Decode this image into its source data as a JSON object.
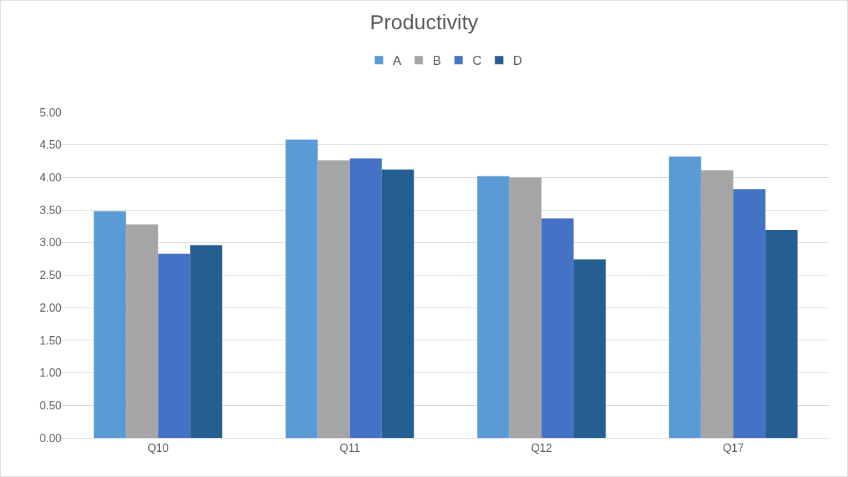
{
  "chart_data": {
    "type": "bar",
    "title": "Productivity",
    "categories": [
      "Q10",
      "Q11",
      "Q12",
      "Q17"
    ],
    "series": [
      {
        "name": "A",
        "color": "#5b9bd5",
        "values": [
          3.48,
          4.58,
          4.02,
          4.32
        ]
      },
      {
        "name": "B",
        "color": "#a5a5a5",
        "values": [
          3.28,
          4.26,
          4.0,
          4.11
        ]
      },
      {
        "name": "C",
        "color": "#4472c4",
        "values": [
          2.83,
          4.29,
          3.37,
          3.82
        ]
      },
      {
        "name": "D",
        "color": "#255e91",
        "values": [
          2.96,
          4.12,
          2.74,
          3.19
        ]
      }
    ],
    "ylim": [
      0,
      5
    ],
    "yticks": [
      {
        "value": 0,
        "label": "0.00"
      },
      {
        "value": 0.5,
        "label": "0.50"
      },
      {
        "value": 1,
        "label": "1.00"
      },
      {
        "value": 1.5,
        "label": "1.50"
      },
      {
        "value": 2,
        "label": "2.00"
      },
      {
        "value": 2.5,
        "label": "2.50"
      },
      {
        "value": 3,
        "label": "3.00"
      },
      {
        "value": 3.5,
        "label": "3.50"
      },
      {
        "value": 4,
        "label": "4.00"
      },
      {
        "value": 4.5,
        "label": "4.50"
      },
      {
        "value": 5,
        "label": "5.00"
      }
    ],
    "grid": "y",
    "legend": "top"
  }
}
